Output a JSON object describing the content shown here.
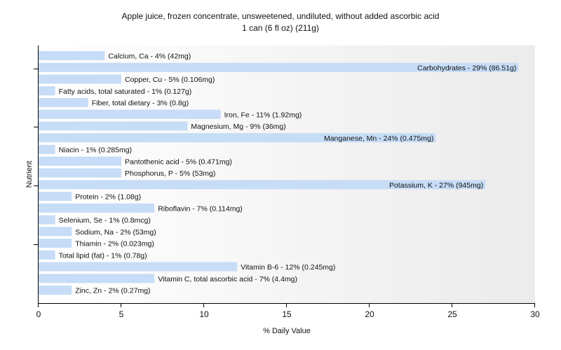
{
  "chart_data": {
    "type": "bar",
    "orientation": "horizontal",
    "title": "Apple juice, frozen concentrate, unsweetened, undiluted, without added ascorbic acid",
    "subtitle": "1 can (6 fl oz) (211g)",
    "xlabel": "% Daily Value",
    "ylabel": "Nutrient",
    "xlim": [
      0,
      30
    ],
    "xticks": [
      0,
      5,
      10,
      15,
      20,
      25,
      30
    ],
    "grid": false,
    "colors": {
      "bar": "#c6dcf7",
      "axis": "#000000",
      "plot_bg_start": "#ffffff",
      "plot_bg_end": "#ebebeb"
    },
    "bars": [
      {
        "label": "Calcium, Ca - 4% (42mg)",
        "value": 4
      },
      {
        "label": "Carbohydrates - 29% (86.51g)",
        "value": 29
      },
      {
        "label": "Copper, Cu - 5% (0.106mg)",
        "value": 5
      },
      {
        "label": "Fatty acids, total saturated - 1% (0.127g)",
        "value": 1
      },
      {
        "label": "Fiber, total dietary - 3% (0.8g)",
        "value": 3
      },
      {
        "label": "Iron, Fe - 11% (1.92mg)",
        "value": 11
      },
      {
        "label": "Magnesium, Mg - 9% (36mg)",
        "value": 9
      },
      {
        "label": "Manganese, Mn - 24% (0.475mg)",
        "value": 24
      },
      {
        "label": "Niacin - 1% (0.285mg)",
        "value": 1
      },
      {
        "label": "Pantothenic acid - 5% (0.471mg)",
        "value": 5
      },
      {
        "label": "Phosphorus, P - 5% (53mg)",
        "value": 5
      },
      {
        "label": "Potassium, K - 27% (945mg)",
        "value": 27
      },
      {
        "label": "Protein - 2% (1.08g)",
        "value": 2
      },
      {
        "label": "Riboflavin - 7% (0.114mg)",
        "value": 7
      },
      {
        "label": "Selenium, Se - 1% (0.8mcg)",
        "value": 1
      },
      {
        "label": "Sodium, Na - 2% (53mg)",
        "value": 2
      },
      {
        "label": "Thiamin - 2% (0.023mg)",
        "value": 2
      },
      {
        "label": "Total lipid (fat) - 1% (0.78g)",
        "value": 1
      },
      {
        "label": "Vitamin B-6 - 12% (0.245mg)",
        "value": 12
      },
      {
        "label": "Vitamin C, total ascorbic acid - 7% (4.4mg)",
        "value": 7
      },
      {
        "label": "Zinc, Zn - 2% (0.27mg)",
        "value": 2
      }
    ]
  }
}
